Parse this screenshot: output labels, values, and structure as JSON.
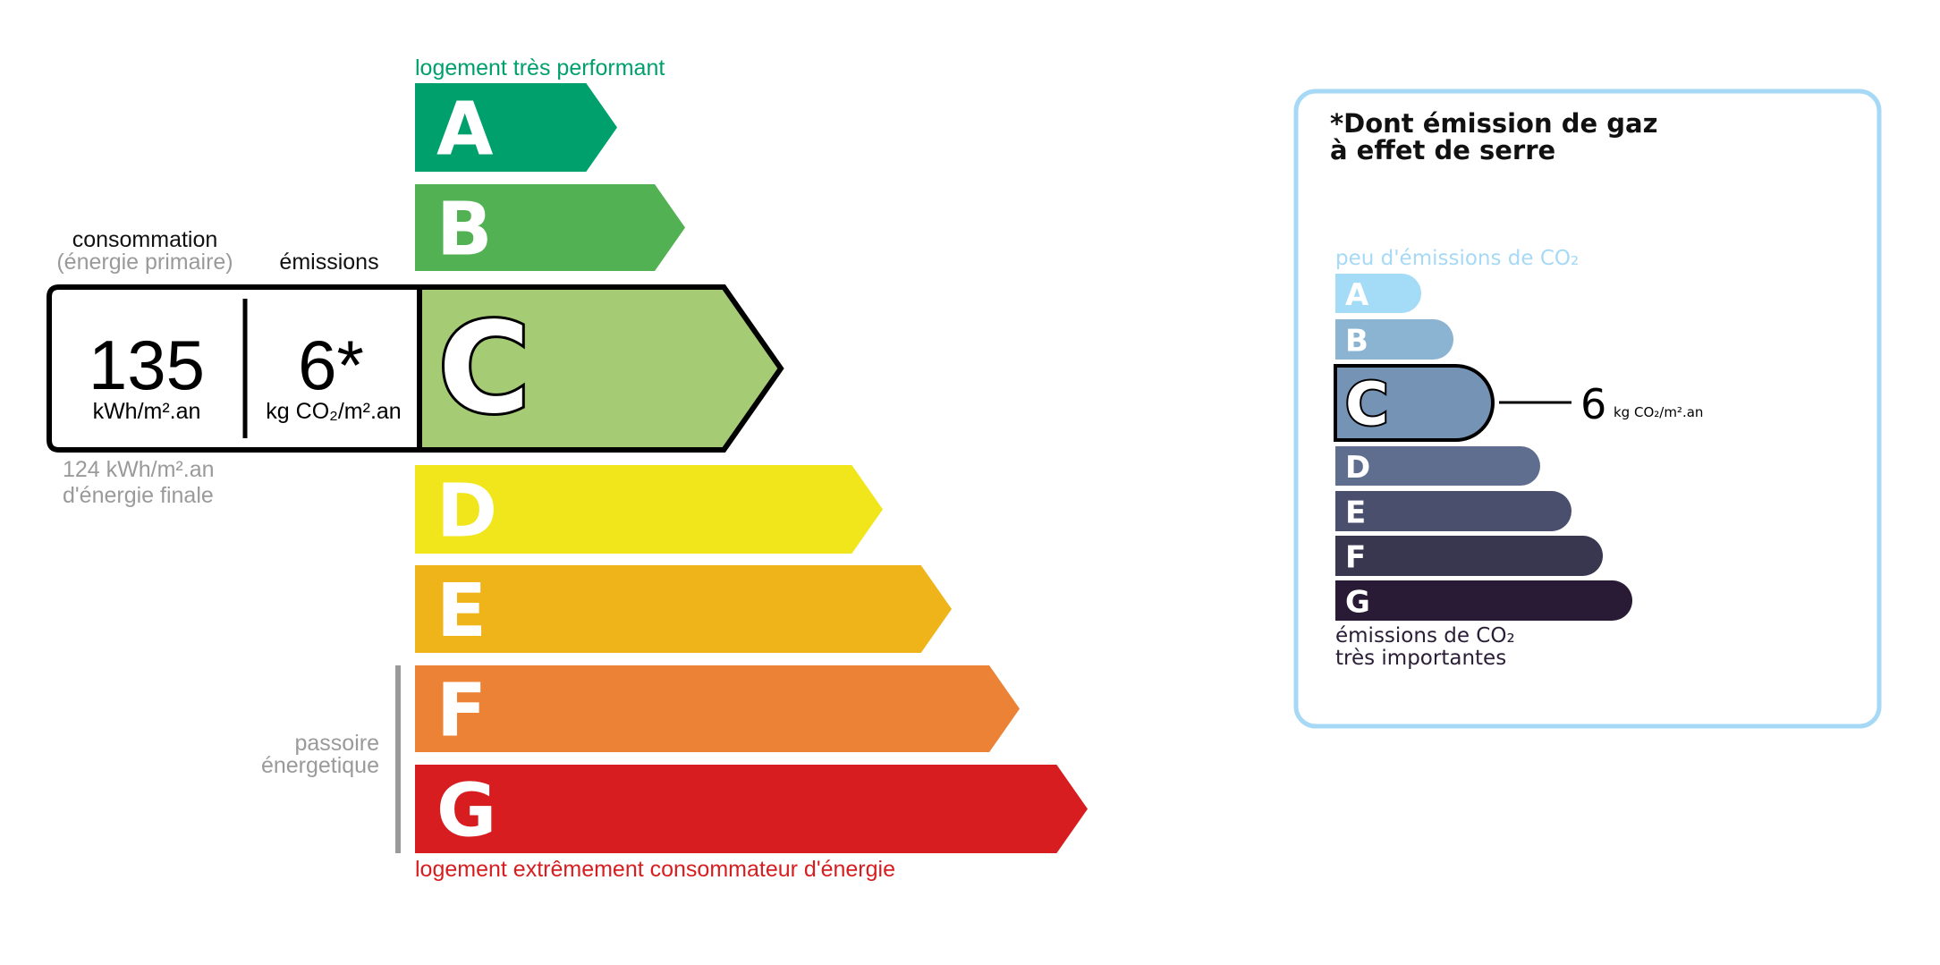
{
  "energy": {
    "top_label": "logement très performant",
    "bottom_label": "logement extrêmement consommateur d'énergie",
    "consumption_label": "consommation",
    "consumption_sublabel": "(énergie primaire)",
    "emissions_label": "émissions",
    "consumption_value": "135",
    "consumption_unit": "kWh/m².an",
    "emissions_value": "6*",
    "emissions_unit": "kg CO₂/m².an",
    "final_energy_value": "124 kWh/m².an",
    "final_energy_label": "d'énergie finale",
    "passoire_line1": "passoire",
    "passoire_line2": "énergetique",
    "current_class": "C",
    "classes": [
      {
        "letter": "A",
        "color": "#00a06d"
      },
      {
        "letter": "B",
        "color": "#52b153"
      },
      {
        "letter": "C",
        "color": "#a5cc74"
      },
      {
        "letter": "D",
        "color": "#f0e61b"
      },
      {
        "letter": "E",
        "color": "#efb41a"
      },
      {
        "letter": "F",
        "color": "#eb8235"
      },
      {
        "letter": "G",
        "color": "#d71d1f"
      }
    ],
    "top_color": "#00a06d",
    "bottom_color": "#d71d1f",
    "muted_color": "#9a9a9a"
  },
  "ghg": {
    "title_line1": "*Dont émission de gaz",
    "title_line2": "à effet de serre",
    "top_label": "peu d'émissions de CO₂",
    "bottom_line1": "émissions de CO₂",
    "bottom_line2": "très importantes",
    "value": "6",
    "unit": "kg CO₂/m².an",
    "current_class": "C",
    "border_color": "#a6d9f5",
    "classes": [
      {
        "letter": "A",
        "color": "#a4dbf6"
      },
      {
        "letter": "B",
        "color": "#8bb4d3"
      },
      {
        "letter": "C",
        "color": "#7593b4"
      },
      {
        "letter": "D",
        "color": "#5f6d8f"
      },
      {
        "letter": "E",
        "color": "#4b4f6e"
      },
      {
        "letter": "F",
        "color": "#39364f"
      },
      {
        "letter": "G",
        "color": "#291b35"
      }
    ]
  }
}
